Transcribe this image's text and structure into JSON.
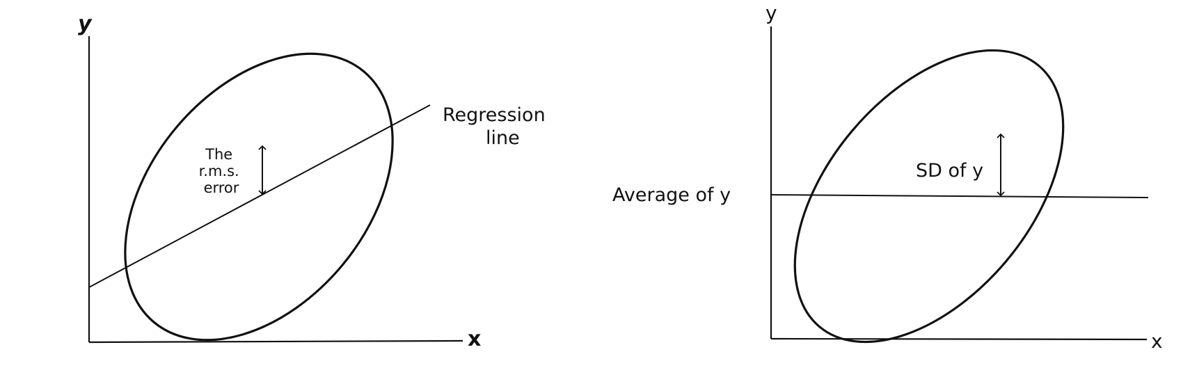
{
  "left_panel": {
    "y_axis_label": "y",
    "x_axis_label": "x",
    "line_label_line1": "Regression",
    "line_label_line2": "line",
    "arrow_label_line1": "The",
    "arrow_label_line2": "r.m.s.",
    "arrow_label_line3": "error"
  },
  "right_panel": {
    "y_axis_label": "y",
    "x_axis_label": "x",
    "line_label": "Average of y",
    "arrow_label": "SD of y"
  },
  "colors": {
    "ink": "#111111",
    "background": "#ffffff"
  }
}
